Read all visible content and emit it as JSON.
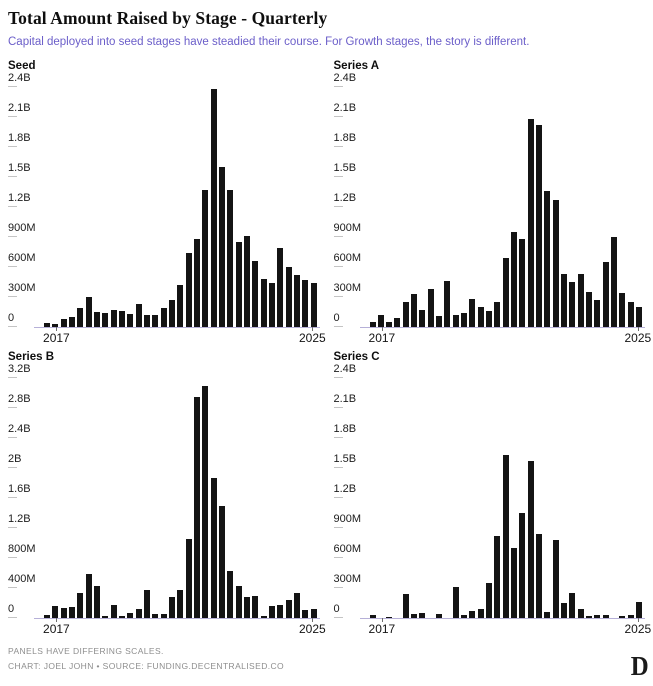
{
  "header": {
    "title": "Total Amount Raised by Stage - Quarterly",
    "subtitle": "Capital deployed into seed stages have steadied their course. For Growth stages, the story is different."
  },
  "footer": {
    "note": "PANELS HAVE DIFFERING SCALES.",
    "credit": "CHART: JOEL JOHN • SOURCE: FUNDING.DECENTRALISED.CO",
    "logo_glyph": "D"
  },
  "colors": {
    "bar": "#141414",
    "subtitle_accent": "#6b5ec9",
    "axis_line": "#b6b0d8",
    "footer_text": "#8e8e8e"
  },
  "chart_data": [
    {
      "type": "bar",
      "title": "Seed",
      "x_start": "2017 Q1",
      "x_end": "2025 Q1",
      "frequency": "quarterly",
      "x_tick_labels": [
        "2017",
        "2025"
      ],
      "y_ticks": [
        "0",
        "300M",
        "600M",
        "900M",
        "1.2B",
        "1.5B",
        "1.8B",
        "2.1B",
        "2.4B"
      ],
      "y_max_millions": 2400,
      "grid": "off",
      "values_millions": [
        40,
        30,
        80,
        105,
        195,
        300,
        155,
        140,
        175,
        165,
        130,
        230,
        120,
        125,
        190,
        270,
        425,
        740,
        880,
        1370,
        2380,
        1600,
        1370,
        850,
        910,
        665,
        480,
        440,
        790,
        600,
        525,
        475,
        440
      ]
    },
    {
      "type": "bar",
      "title": "Series A",
      "x_start": "2017 Q1",
      "x_end": "2025 Q1",
      "frequency": "quarterly",
      "x_tick_labels": [
        "2017",
        "2025"
      ],
      "y_ticks": [
        "0",
        "300M",
        "600M",
        "900M",
        "1.2B",
        "1.5B",
        "1.8B",
        "2.1B",
        "2.4B"
      ],
      "y_max_millions": 2400,
      "grid": "off",
      "values_millions": [
        50,
        120,
        55,
        90,
        250,
        330,
        170,
        380,
        110,
        460,
        120,
        140,
        285,
        200,
        165,
        250,
        690,
        950,
        880,
        2080,
        2020,
        1360,
        1270,
        530,
        450,
        530,
        350,
        270,
        650,
        900,
        340,
        255,
        205
      ]
    },
    {
      "type": "bar",
      "title": "Series B",
      "x_start": "2017 Q1",
      "x_end": "2025 Q1",
      "frequency": "quarterly",
      "x_tick_labels": [
        "2017",
        "2025"
      ],
      "y_ticks": [
        "0",
        "400M",
        "800M",
        "1.2B",
        "1.6B",
        "2B",
        "2.4B",
        "2.8B",
        "3.2B"
      ],
      "y_max_millions": 3200,
      "grid": "off",
      "values_millions": [
        40,
        165,
        135,
        145,
        330,
        590,
        430,
        30,
        175,
        25,
        65,
        120,
        380,
        50,
        60,
        280,
        370,
        1050,
        2950,
        3100,
        1870,
        1500,
        630,
        430,
        275,
        300,
        30,
        160,
        175,
        240,
        340,
        105,
        115
      ]
    },
    {
      "type": "bar",
      "title": "Series C",
      "x_start": "2017 Q1",
      "x_end": "2025 Q1",
      "frequency": "quarterly",
      "x_tick_labels": [
        "2017",
        "2025"
      ],
      "y_ticks": [
        "0",
        "300M",
        "600M",
        "900M",
        "1.2B",
        "1.5B",
        "1.8B",
        "2.1B",
        "2.4B"
      ],
      "y_max_millions": 2400,
      "grid": "off",
      "values_millions": [
        30,
        0,
        15,
        0,
        240,
        45,
        50,
        0,
        40,
        0,
        310,
        35,
        70,
        90,
        350,
        820,
        1630,
        700,
        1050,
        1570,
        840,
        60,
        780,
        150,
        255,
        95,
        25,
        35,
        35,
        0,
        25,
        30,
        165
      ]
    }
  ]
}
